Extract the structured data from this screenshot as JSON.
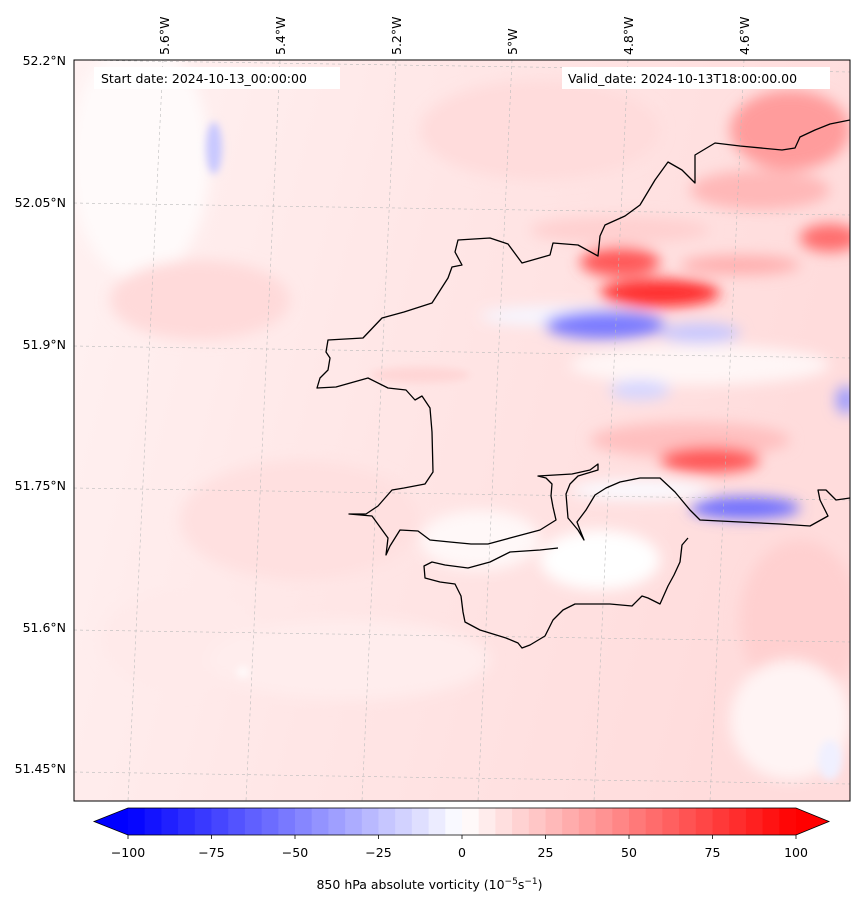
{
  "map": {
    "start_date_label": "Start date: 2024-10-13_00:00:00",
    "valid_date_label": "Valid_date: 2024-10-13T18:00:00.00",
    "lon_labels": [
      "5.6°W",
      "5.4°W",
      "5.2°W",
      "5°W",
      "4.8°W",
      "4.6°W"
    ],
    "lat_labels": [
      "52.2°N",
      "52.05°N",
      "51.9°N",
      "51.75°N",
      "51.6°N",
      "51.45°N"
    ],
    "field": "850 hPa absolute vorticity",
    "coastline_color": "#000000"
  },
  "colorbar": {
    "title_prefix": "850 hPa absolute vorticity (10",
    "title_exp1": "−5",
    "title_mid": "s",
    "title_exp2": "−1",
    "title_suffix": ")",
    "min": -100,
    "max": 100,
    "tick_values": [
      -100,
      -75,
      -50,
      -25,
      0,
      25,
      50,
      75,
      100
    ],
    "tick_labels": [
      "−100",
      "−75",
      "−50",
      "−25",
      "0",
      "25",
      "50",
      "75",
      "100"
    ],
    "colormap": "bwr",
    "extend": "both",
    "low_color": "#0000ff",
    "high_color": "#ff0000"
  }
}
